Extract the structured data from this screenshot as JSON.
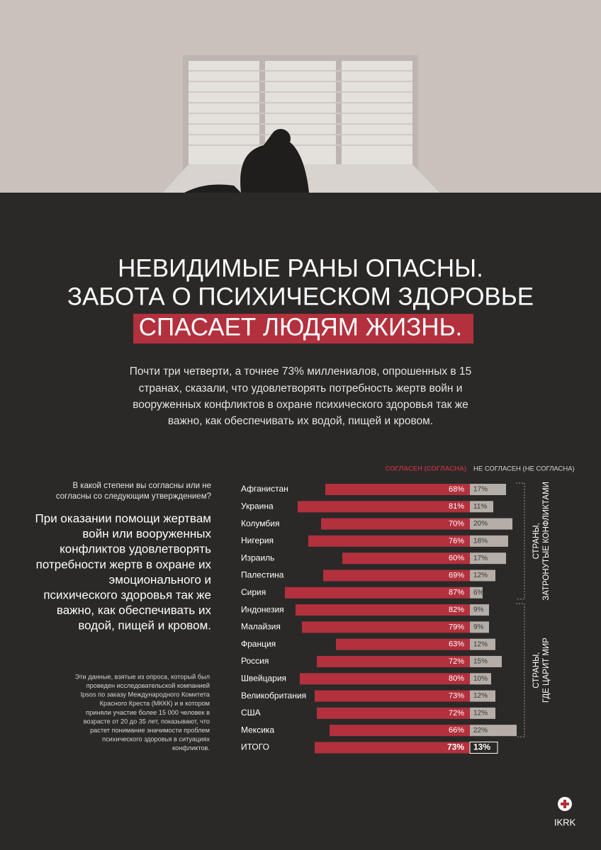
{
  "header": {
    "title_lines": [
      "НЕВИДИМЫЕ РАНЫ ОПАСНЫ.",
      "ЗАБОТА О ПСИХИЧЕСКОМ ЗДОРОВЬЕ",
      "СПАСАЕТ ЛЮДЯМ ЖИЗНЬ."
    ],
    "intro_lines": [
      "Почти три четверти, а точнее 73% миллениалов, опрошенных в 15",
      "странах, сказали, что удовлетворять потребность жертв войн и",
      "вооруженных конфликтов в охране психического здоровья так же",
      "важно, как обеспечивать их водой, пищей и кровом."
    ]
  },
  "side": {
    "question_lines": [
      "В какой степени вы согласны или не",
      "согласны со следующим утверждением?"
    ],
    "statement_lines": [
      "При оказании помощи жертвам",
      "войн или вооруженных",
      "конфликтов удовлетворять",
      "потребности жертв в охране их",
      "эмоционального и",
      "психического здоровья так же",
      "важно, как обеспечивать их",
      "водой, пищей и кровом."
    ],
    "footnote_lines": [
      "Эти данные, взятые из опроса, который был",
      "проведен исследовательской компанией",
      "Ipsos по заказу Международного Комитета",
      "Красного Креста (МККК) и в котором",
      "приняли участие более 15 000 человек в",
      "возрасте от 20 до 35 лет, показывают, что",
      "растет понимание значимости проблем",
      "психического здоровья в ситуациях",
      "конфликтов."
    ]
  },
  "chart_data": {
    "type": "diverging-bar",
    "categories": [
      "Афганистан",
      "Украина",
      "Колумбия",
      "Нигерия",
      "Израиль",
      "Палестина",
      "Сирия",
      "Индонезия",
      "Малайзия",
      "Франция",
      "Россия",
      "Швейцария",
      "Великобритания",
      "США",
      "Мексика",
      "ИТОГО"
    ],
    "series": [
      {
        "name": "СОГЛАСЕН (СОГЛАСНА)",
        "color": "#b3303d",
        "values": [
          68,
          81,
          70,
          76,
          60,
          69,
          87,
          82,
          79,
          63,
          72,
          80,
          73,
          72,
          66,
          73
        ],
        "value_labels": [
          "68%",
          "81%",
          "70%",
          "76%",
          "60%",
          "69%",
          "87%",
          "82%",
          "79%",
          "63%",
          "72%",
          "80%",
          "73%",
          "72%",
          "66%",
          "73%"
        ]
      },
      {
        "name": "НЕ СОГЛАСЕН (НЕ СОГЛАСНА)",
        "color": "#b5ada7",
        "values": [
          17,
          11,
          20,
          18,
          17,
          12,
          6,
          9,
          9,
          12,
          15,
          10,
          12,
          12,
          22,
          13
        ],
        "value_labels": [
          "17%",
          "11%",
          "20%",
          "18%",
          "17%",
          "12%",
          "6%",
          "9%",
          "9%",
          "12%",
          "15%",
          "10%",
          "12%",
          "12%",
          "22%",
          "13%"
        ]
      }
    ],
    "groups": [
      {
        "label": [
          "СТРАНЫ,",
          "ЗАТРОНУТЫЕ КОНФЛИКТАМИ"
        ]
      },
      {
        "label": [
          "СТРАНЫ,",
          "ГДЕ ЦАРИТ МИР"
        ]
      }
    ]
  },
  "footer": {
    "logo": "IKRK"
  }
}
